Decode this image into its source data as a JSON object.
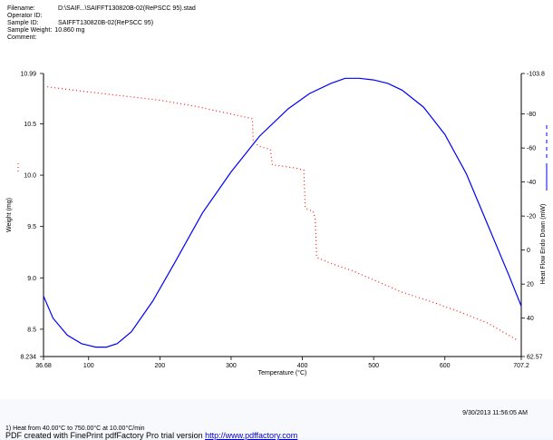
{
  "header": {
    "rows": [
      {
        "label": "Filename:",
        "value": "D:\\SAIF...\\SAIFFT130820B-02(RePSCC 95).stad"
      },
      {
        "label": "Operator ID:",
        "value": ""
      },
      {
        "label": "Sample ID:",
        "value": "SAIFFT130820B-02(RePSCC 95)"
      },
      {
        "label": "Sample Weight:",
        "value": "10.860 mg"
      },
      {
        "label": "Comment:",
        "value": ""
      }
    ]
  },
  "chart_data": {
    "type": "line",
    "xlabel": "Temperature (°C)",
    "ylabel": "Weight (mg)",
    "y2label": "Heat Flow Endo Down (mW)",
    "xlim": [
      36.68,
      707.2
    ],
    "ylim": [
      8.234,
      10.99
    ],
    "y2lim": [
      62.57,
      -103.8
    ],
    "x_ticks": [
      "36.68",
      "100",
      "200",
      "300",
      "400",
      "500",
      "600",
      "707.2"
    ],
    "y_ticks": [
      "8.234",
      "8.5",
      "9.0",
      "9.5",
      "10.0",
      "10.5",
      "10.99"
    ],
    "y2_ticks": [
      "62.57",
      "40",
      "20",
      "0",
      "-20",
      "-40",
      "-60",
      "-80",
      "-103.8"
    ],
    "grid": false,
    "series": [
      {
        "style": "dotted",
        "color": "#ff0000",
        "x": [
          42,
          100,
          150,
          200,
          250,
          290,
          330,
          331,
          340,
          355,
          358,
          370,
          390,
          402,
          404,
          410,
          415,
          418,
          420,
          440,
          470,
          500,
          540,
          580,
          620,
          660,
          700
        ],
        "y": [
          10.86,
          10.81,
          10.77,
          10.73,
          10.67,
          10.61,
          10.55,
          10.32,
          10.28,
          10.25,
          10.1,
          10.09,
          10.07,
          10.05,
          9.68,
          9.66,
          9.65,
          9.58,
          9.2,
          9.14,
          9.07,
          8.98,
          8.86,
          8.77,
          8.67,
          8.56,
          8.4
        ]
      },
      {
        "style": "solid",
        "color": "#0000ff",
        "x": [
          36.68,
          50,
          70,
          90,
          110,
          125,
          140,
          160,
          190,
          220,
          260,
          300,
          340,
          380,
          410,
          440,
          460,
          480,
          500,
          520,
          540,
          570,
          600,
          630,
          660,
          690,
          707.2
        ],
        "y": [
          27,
          40,
          50,
          55,
          57,
          57,
          55,
          48,
          30,
          8,
          -22,
          -46,
          -67,
          -83,
          -92,
          -98,
          -101,
          -101,
          -100,
          -98,
          -94,
          -84,
          -68,
          -45,
          -15,
          15,
          33
        ]
      }
    ]
  },
  "footer": {
    "timestamp": "9/30/2013 11:56:05 AM",
    "method": "1)  Heat from 40.00°C to 750.00°C at 10.00°C/min",
    "pdf_prefix": "PDF created with FinePrint pdfFactory Pro trial version ",
    "pdf_link": "http://www.pdffactory.com"
  }
}
